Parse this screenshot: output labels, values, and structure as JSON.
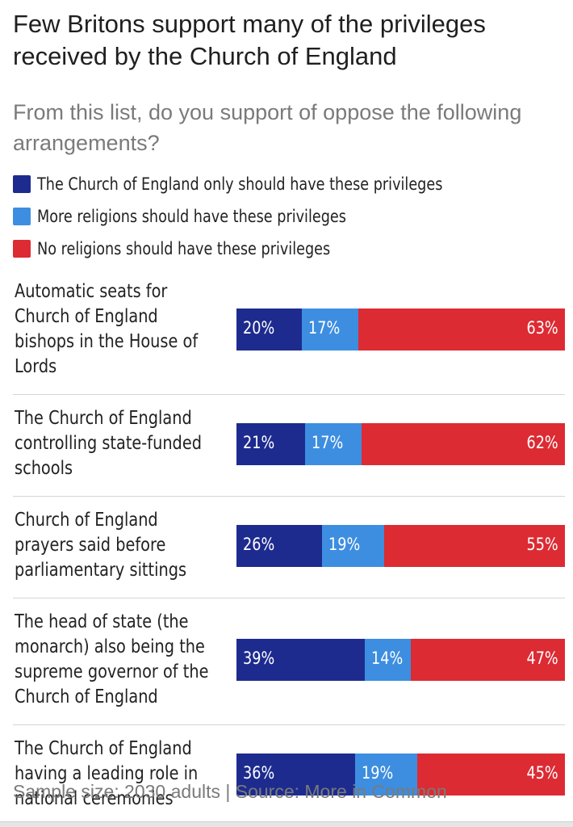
{
  "colors": {
    "only_coe": "#1d2b8f",
    "more_religions": "#3d8ee0",
    "no_religions": "#dc2b33"
  },
  "chart_data": {
    "type": "bar",
    "orientation": "horizontal",
    "stacked": true,
    "normalized": true,
    "title": "Few Britons support many of the privileges received by the Church of England",
    "subtitle": "From this list, do you support of oppose the following arrangements?",
    "legend": [
      {
        "name": "The Church of England only should have these privileges",
        "color": "#1d2b8f"
      },
      {
        "name": "More religions should have these privileges",
        "color": "#3d8ee0"
      },
      {
        "name": "No religions should have these privileges",
        "color": "#dc2b33"
      }
    ],
    "categories": [
      "Automatic seats for Church of England bishops in the House of Lords",
      "The Church of England controlling state-funded schools",
      "Church of England prayers said before parliamentary sittings",
      "The head of state (the monarch) also being the supreme governor of the Church of England",
      "The Church of England having a leading role in national ceremonies"
    ],
    "category_lines": [
      [
        "Automatic seats for",
        "Church of England",
        "bishops in the House of",
        "Lords"
      ],
      [
        "The Church of England",
        "controlling state-funded",
        "schools"
      ],
      [
        "Church of England",
        "prayers said before",
        "parliamentary sittings"
      ],
      [
        "The head of state (the",
        "monarch) also being the",
        "supreme governor of the",
        "Church of England"
      ],
      [
        "The Church of England",
        "having a leading role in",
        "national ceremonies"
      ]
    ],
    "series": [
      {
        "name": "The Church of England only should have these privileges",
        "values": [
          20,
          21,
          26,
          39,
          36
        ],
        "labels": [
          "20%",
          "21%",
          "26%",
          "39%",
          "36%"
        ]
      },
      {
        "name": "More religions should have these privileges",
        "values": [
          17,
          17,
          19,
          14,
          19
        ],
        "labels": [
          "17%",
          "17%",
          "19%",
          "14%",
          "19%"
        ]
      },
      {
        "name": "No religions should have these privileges",
        "values": [
          63,
          62,
          55,
          47,
          45
        ],
        "labels": [
          "63%",
          "62%",
          "55%",
          "47%",
          "45%"
        ]
      }
    ],
    "xlim": [
      0,
      100
    ]
  },
  "footer": "Sample size: 2030 adults | Source: More in Common"
}
